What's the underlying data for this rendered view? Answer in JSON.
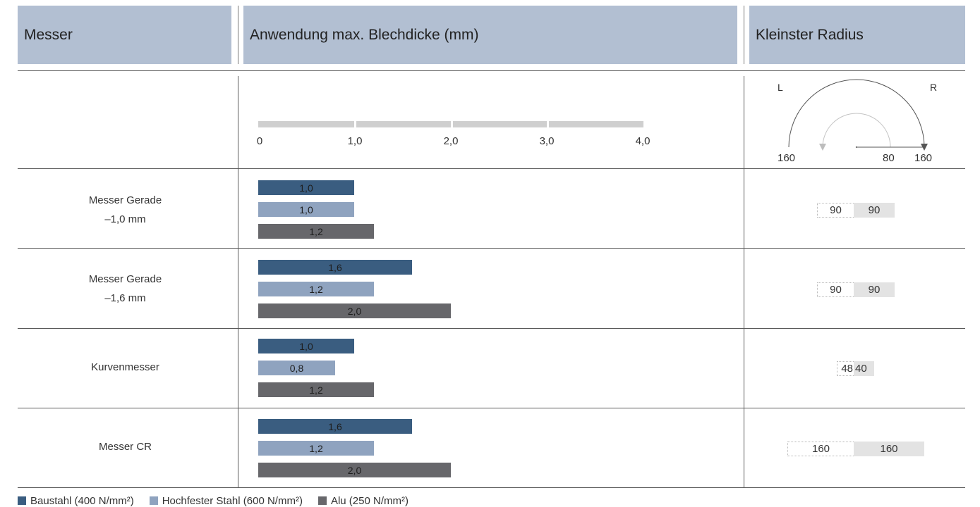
{
  "header": {
    "col1": "Messer",
    "col2": "Anwendung max. Blechdicke (mm)",
    "col3": "Kleinster Radius"
  },
  "scale": {
    "ticks": [
      "0",
      "1,0",
      "2,0",
      "3,0",
      "4,0"
    ],
    "diagram_labels": {
      "left": "L",
      "right": "R",
      "inner": "80",
      "bottom_left": "160",
      "bottom_right": "160"
    }
  },
  "rows": [
    {
      "label_line1": "Messer Gerade",
      "label_line2": "–1,0 mm",
      "radius_left": "90",
      "radius_right": "90"
    },
    {
      "label_line1": "Messer Gerade",
      "label_line2": "–1,6 mm",
      "radius_left": "90",
      "radius_right": "90"
    },
    {
      "label_line1": "Kurvenmesser",
      "label_line2": "",
      "radius_left": "48",
      "radius_right": "40"
    },
    {
      "label_line1": "Messer CR",
      "label_line2": "",
      "radius_left": "160",
      "radius_right": "160"
    }
  ],
  "legend": [
    {
      "label": "Baustahl (400 N/mm²)",
      "color": "#3a5d80"
    },
    {
      "label": "Hochfester Stahl (600 N/mm²)",
      "color": "#8fa3bf"
    },
    {
      "label": "Alu (250 N/mm²)",
      "color": "#67676b"
    }
  ],
  "chart_data": {
    "type": "bar",
    "orientation": "horizontal",
    "xlim": [
      0,
      4.0
    ],
    "categories": [
      "Messer Gerade –1,0 mm",
      "Messer Gerade –1,6 mm",
      "Kurvenmesser",
      "Messer CR"
    ],
    "series": [
      {
        "name": "Baustahl (400 N/mm²)",
        "color": "#3a5d80",
        "values": [
          1.0,
          1.6,
          1.0,
          1.6
        ],
        "labels": [
          "1,0",
          "1,6",
          "1,0",
          "1,6"
        ]
      },
      {
        "name": "Hochfester Stahl (600 N/mm²)",
        "color": "#8fa3bf",
        "values": [
          1.0,
          1.2,
          0.8,
          1.2
        ],
        "labels": [
          "1,0",
          "1,2",
          "0,8",
          "1,2"
        ]
      },
      {
        "name": "Alu (250 N/mm²)",
        "color": "#67676b",
        "values": [
          1.2,
          2.0,
          1.2,
          2.0
        ],
        "labels": [
          "1,2",
          "2,0",
          "1,2",
          "2,0"
        ]
      }
    ]
  }
}
